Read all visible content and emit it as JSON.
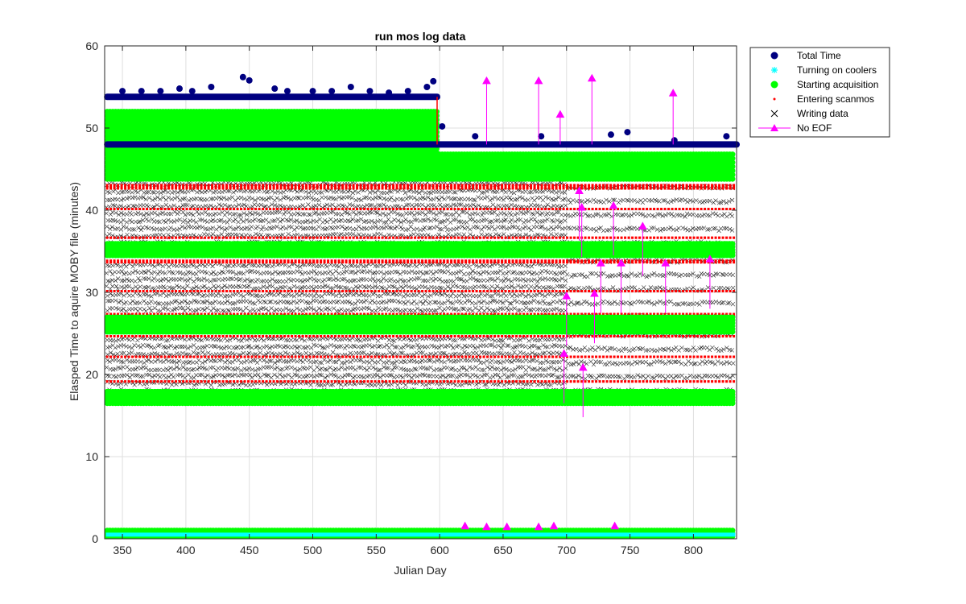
{
  "chart_data": {
    "type": "scatter",
    "title": "run mos log data",
    "xlabel": "Julian Day",
    "ylabel": "Elasped Time to aquire MOBY file (minutes)",
    "xlim": [
      336,
      834
    ],
    "ylim": [
      0,
      60
    ],
    "xticks": [
      350,
      400,
      450,
      500,
      550,
      600,
      650,
      700,
      750,
      800
    ],
    "yticks": [
      0,
      10,
      20,
      30,
      40,
      50,
      60
    ],
    "grid": true,
    "legend_position": "outside top-right",
    "series": [
      {
        "name": "Total Time",
        "marker": "circle-filled",
        "color": "#000080",
        "segments": [
          {
            "x_start": 338,
            "x_end": 598,
            "levels": [
              48,
              53.8
            ],
            "peak_days": [
              350,
              365,
              380,
              395,
              405,
              420,
              445,
              450,
              470,
              480,
              500,
              515,
              530,
              545,
              560,
              575,
              590,
              595
            ],
            "peak_values": [
              54.5,
              54.5,
              54.5,
              54.8,
              54.5,
              55.0,
              56.2,
              55.8,
              54.8,
              54.5,
              54.5,
              54.5,
              55.0,
              54.5,
              54.3,
              54.5,
              55.0,
              55.7
            ]
          },
          {
            "x_start": 598,
            "x_end": 834,
            "levels": [
              48
            ],
            "peak_days": [
              602,
              628,
              680,
              735,
              748,
              785,
              826
            ],
            "peak_values": [
              50.2,
              49.0,
              49.0,
              49.2,
              49.5,
              48.5,
              49.0
            ]
          }
        ]
      },
      {
        "name": "Turning on coolers",
        "marker": "asterisk",
        "color": "#00FFFF",
        "bands": [
          [
            0.2,
            0.8
          ]
        ],
        "x_start": 338,
        "x_end": 834
      },
      {
        "name": "Starting acquisition",
        "marker": "circle-filled",
        "color": "#00FF00",
        "bands": [
          [
            0.3,
            1.0
          ],
          [
            16.5,
            18.0
          ],
          [
            25.2,
            27.0
          ],
          [
            34.5,
            36.0
          ],
          [
            43.8,
            47.0
          ],
          [
            47.0,
            52.0
          ]
        ],
        "upper_band_end_day": 598,
        "x_start": 338,
        "x_end": 834
      },
      {
        "name": "Entering scanmos",
        "marker": "point",
        "color": "#FF0000",
        "bands": [
          [
            1.0,
            1.2
          ],
          [
            17.5,
            18.0
          ],
          [
            19.0,
            19.3
          ],
          [
            22.0,
            22.3
          ],
          [
            24.5,
            24.8
          ],
          [
            27.0,
            27.5
          ],
          [
            30.0,
            30.3
          ],
          [
            33.5,
            34.0
          ],
          [
            36.5,
            36.8
          ],
          [
            40.0,
            40.3
          ],
          [
            42.5,
            43.2
          ]
        ],
        "x_start": 338,
        "x_end": 834
      },
      {
        "name": "Writing data",
        "marker": "x",
        "color": "#000000",
        "bands": [
          [
            18.0,
            25.0
          ],
          [
            27.0,
            34.0
          ],
          [
            36.0,
            43.5
          ]
        ],
        "x_start": 338,
        "x_end": 834
      },
      {
        "name": "No EOF",
        "marker": "triangle-up",
        "color": "#FF00FF",
        "spikes": [
          {
            "x": 637,
            "y": 55.7
          },
          {
            "x": 678,
            "y": 55.7
          },
          {
            "x": 695,
            "y": 51.6
          },
          {
            "x": 720,
            "y": 56.0
          },
          {
            "x": 784,
            "y": 54.2
          },
          {
            "x": 710,
            "y": 42.3
          },
          {
            "x": 712,
            "y": 40.3
          },
          {
            "x": 737,
            "y": 40.5
          },
          {
            "x": 760,
            "y": 38.0
          },
          {
            "x": 727,
            "y": 33.5
          },
          {
            "x": 743,
            "y": 33.5
          },
          {
            "x": 778,
            "y": 33.5
          },
          {
            "x": 813,
            "y": 34.0
          },
          {
            "x": 700,
            "y": 29.5
          },
          {
            "x": 722,
            "y": 29.8
          },
          {
            "x": 698,
            "y": 22.5
          },
          {
            "x": 713,
            "y": 20.8
          },
          {
            "x": 620,
            "y": 1.5
          },
          {
            "x": 637,
            "y": 1.4
          },
          {
            "x": 653,
            "y": 1.4
          },
          {
            "x": 678,
            "y": 1.4
          },
          {
            "x": 690,
            "y": 1.5
          },
          {
            "x": 738,
            "y": 1.5
          }
        ]
      }
    ]
  }
}
